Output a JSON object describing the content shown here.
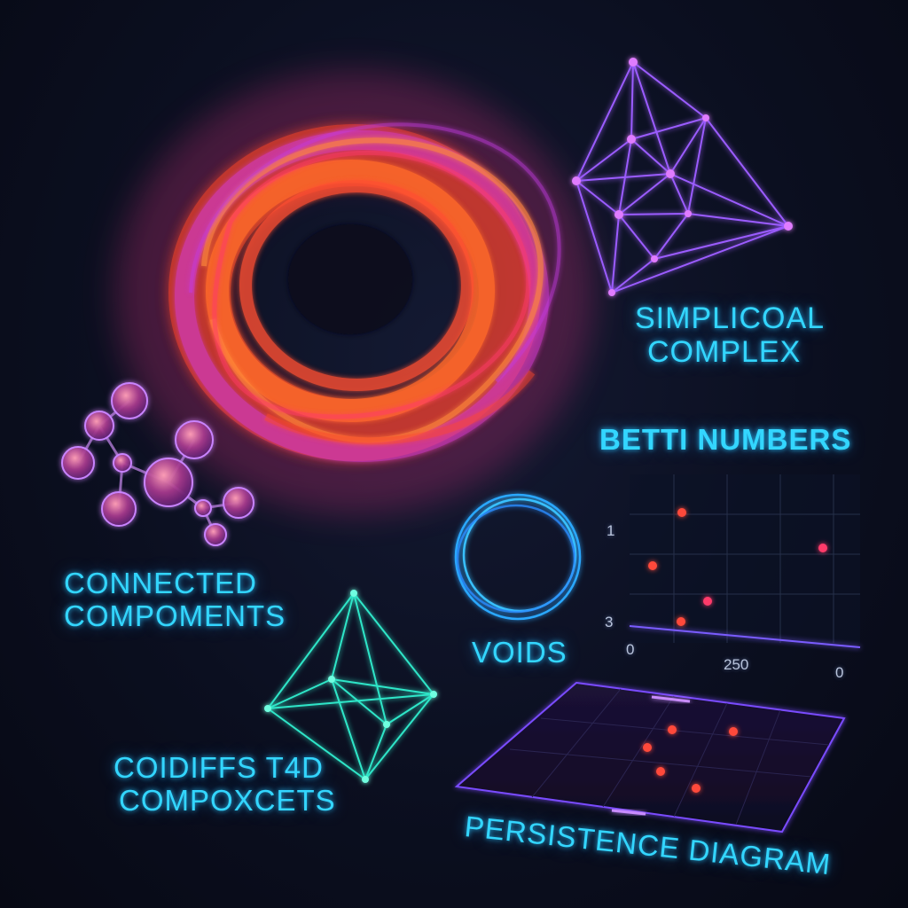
{
  "labels": {
    "simplicial_complex": [
      "SIMPLICOAL",
      "COMPLEX"
    ],
    "betti_numbers": "BETTI NUMBERS",
    "connected_components": [
      "CONNECTED",
      "COMPOMENTS"
    ],
    "voids": "VOIDS",
    "cofaces": [
      "COIDIFFS T4D",
      "COMPOXCETS"
    ],
    "persistence_diagram": "PERSISTENCE DIAGRAM"
  },
  "betti_plot": {
    "y_ticks": [
      "1",
      "3"
    ],
    "x_ticks": [
      "0",
      "250",
      "0"
    ]
  },
  "colors": {
    "label_cyan": "#33d6ff",
    "torus_red": "#ff4a2a",
    "torus_magenta": "#d43ad6",
    "simplex_violet": "#9b5cff",
    "tetra_teal": "#2ee6c8",
    "point_red": "#ff4a3a"
  }
}
